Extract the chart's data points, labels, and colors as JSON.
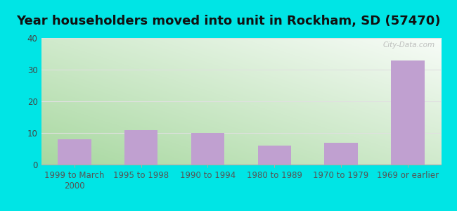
{
  "title": "Year householders moved into unit in Rockham, SD (57470)",
  "categories": [
    "1999 to March\n2000",
    "1995 to 1998",
    "1990 to 1994",
    "1980 to 1989",
    "1970 to 1979",
    "1969 or earlier"
  ],
  "values": [
    8,
    11,
    10,
    6,
    7,
    33
  ],
  "bar_color": "#c0a0d0",
  "ylim": [
    0,
    40
  ],
  "yticks": [
    0,
    10,
    20,
    30,
    40
  ],
  "background_outer": "#00e5e5",
  "bg_grad_bottom_left": "#a8d8a0",
  "bg_grad_top_right": "#f8fcf8",
  "grid_color": "#e0e0e0",
  "title_fontsize": 13,
  "tick_fontsize": 8.5,
  "watermark": "City-Data.com"
}
